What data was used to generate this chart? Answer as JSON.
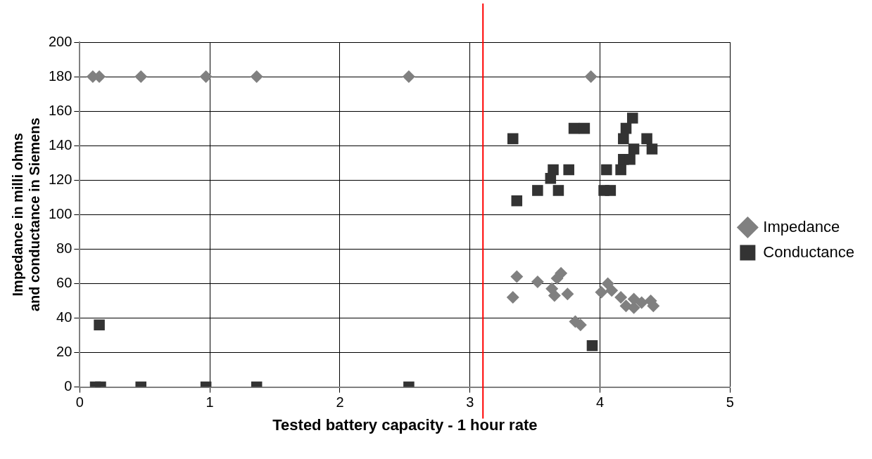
{
  "chart_data": {
    "type": "scatter",
    "xlabel": "Tested battery capacity - 1 hour rate",
    "ylabel": "Impedance in milli ohms and conductance in Siemens",
    "xlim": [
      0,
      5
    ],
    "xticks": [
      0,
      1,
      2,
      3,
      4,
      5
    ],
    "ylim": [
      0,
      200
    ],
    "yticks": [
      0,
      20,
      40,
      60,
      80,
      100,
      120,
      140,
      160,
      180,
      200
    ],
    "grid": true,
    "legend": "right",
    "ref_lines": [
      {
        "axis": "x",
        "value": 3.1,
        "color": "#ff0000"
      }
    ],
    "series": [
      {
        "name": "Impedance",
        "color": "#808080",
        "marker": "diamond",
        "x": [
          0.1,
          0.15,
          0.47,
          0.97,
          1.36,
          2.53,
          3.93,
          3.36,
          3.33,
          3.52,
          3.7,
          3.67,
          3.63,
          3.65,
          3.75,
          3.81,
          3.85,
          4.06,
          4.01,
          4.09,
          4.16,
          4.2,
          4.26,
          4.26,
          4.32,
          4.39,
          4.41
        ],
        "values": [
          180,
          180,
          180,
          180,
          180,
          180,
          180,
          64,
          52,
          61,
          66,
          63,
          57,
          53,
          54,
          38,
          36,
          60,
          55,
          56,
          52,
          47,
          46,
          51,
          49,
          50,
          47
        ]
      },
      {
        "name": "Conductance",
        "color": "#333333",
        "marker": "square",
        "x": [
          0.12,
          0.16,
          0.47,
          0.97,
          1.36,
          2.53,
          0.15,
          3.94,
          3.33,
          3.36,
          3.8,
          3.88,
          3.52,
          3.68,
          3.64,
          3.76,
          3.62,
          4.03,
          4.08,
          4.05,
          4.16,
          4.18,
          4.23,
          4.18,
          4.2,
          4.25,
          4.36,
          4.4,
          4.26
        ],
        "values": [
          0,
          0,
          0,
          0,
          0,
          0,
          36,
          24,
          144,
          108,
          150,
          150,
          114,
          114,
          126,
          126,
          121,
          114,
          114,
          126,
          126,
          132,
          132,
          144,
          150,
          156,
          144,
          138,
          138
        ]
      }
    ]
  }
}
